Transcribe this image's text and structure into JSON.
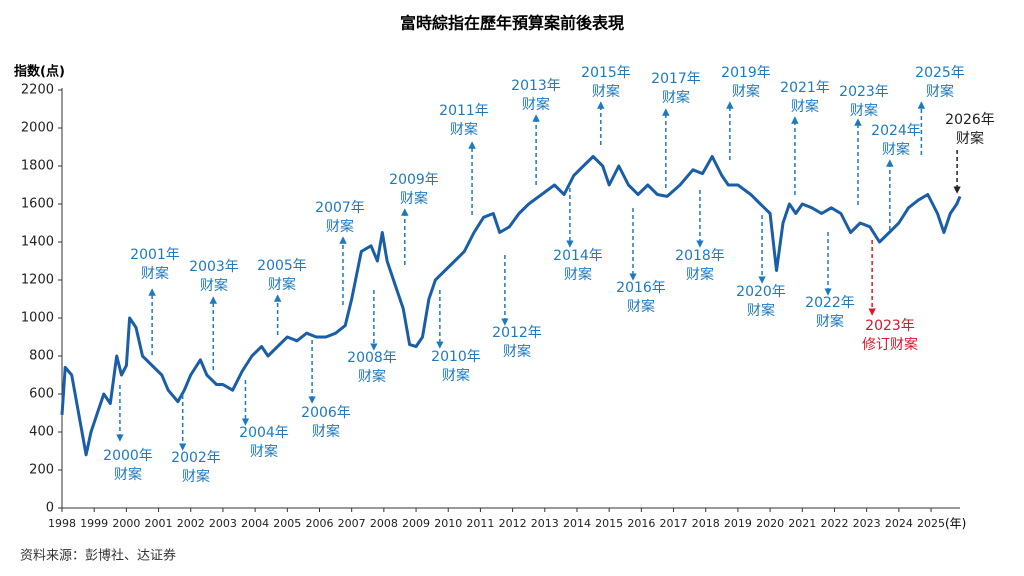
{
  "chart_data": {
    "type": "line",
    "title": "富時綜指在歷年預算案前後表現",
    "y_label": "指数(点)",
    "x_label": "(年)",
    "source": "资料来源：彭博社、达证券",
    "color": "#1a5ea8",
    "x": [
      1998.0,
      1998.1,
      1998.3,
      1998.6,
      1998.75,
      1998.9,
      1999.1,
      1999.3,
      1999.5,
      1999.7,
      1999.85,
      2000.0,
      2000.1,
      2000.3,
      2000.5,
      2000.8,
      2001.1,
      2001.3,
      2001.6,
      2001.8,
      2002.0,
      2002.3,
      2002.5,
      2002.8,
      2003.0,
      2003.3,
      2003.6,
      2003.9,
      2004.2,
      2004.4,
      2004.7,
      2005.0,
      2005.3,
      2005.6,
      2005.9,
      2006.2,
      2006.5,
      2006.8,
      2007.0,
      2007.3,
      2007.6,
      2007.8,
      2007.95,
      2008.1,
      2008.4,
      2008.6,
      2008.8,
      2009.0,
      2009.2,
      2009.4,
      2009.6,
      2009.9,
      2010.2,
      2010.5,
      2010.8,
      2011.1,
      2011.4,
      2011.6,
      2011.9,
      2012.2,
      2012.5,
      2012.9,
      2013.3,
      2013.6,
      2013.9,
      2014.2,
      2014.5,
      2014.8,
      2015.0,
      2015.3,
      2015.6,
      2015.9,
      2016.2,
      2016.5,
      2016.8,
      2017.2,
      2017.6,
      2017.9,
      2018.2,
      2018.5,
      2018.7,
      2019.0,
      2019.4,
      2019.7,
      2020.0,
      2020.2,
      2020.4,
      2020.6,
      2020.8,
      2021.0,
      2021.3,
      2021.6,
      2021.9,
      2022.2,
      2022.5,
      2022.8,
      2023.1,
      2023.4,
      2023.7,
      2024.0,
      2024.3,
      2024.6,
      2024.9,
      2025.2,
      2025.4,
      2025.6,
      2025.8,
      2025.9
    ],
    "values": [
      490,
      740,
      700,
      420,
      280,
      400,
      500,
      600,
      550,
      800,
      700,
      750,
      1000,
      950,
      800,
      750,
      700,
      620,
      560,
      620,
      700,
      780,
      700,
      650,
      650,
      620,
      720,
      800,
      850,
      800,
      850,
      900,
      880,
      920,
      900,
      900,
      920,
      960,
      1100,
      1350,
      1380,
      1300,
      1450,
      1300,
      1150,
      1050,
      860,
      850,
      900,
      1100,
      1200,
      1250,
      1300,
      1350,
      1450,
      1530,
      1550,
      1450,
      1480,
      1550,
      1600,
      1650,
      1700,
      1650,
      1750,
      1800,
      1850,
      1800,
      1700,
      1800,
      1700,
      1650,
      1700,
      1650,
      1640,
      1700,
      1780,
      1760,
      1850,
      1750,
      1700,
      1700,
      1650,
      1600,
      1550,
      1250,
      1500,
      1600,
      1550,
      1600,
      1580,
      1550,
      1580,
      1550,
      1450,
      1500,
      1480,
      1400,
      1450,
      1500,
      1580,
      1620,
      1650,
      1550,
      1450,
      1550,
      1600,
      1640
    ],
    "xlim": [
      1998,
      2025.9
    ],
    "xticks": [
      1998,
      1999,
      2000,
      2001,
      2002,
      2003,
      2004,
      2005,
      2006,
      2007,
      2008,
      2009,
      2010,
      2011,
      2012,
      2013,
      2014,
      2015,
      2016,
      2017,
      2018,
      2019,
      2020,
      2021,
      2022,
      2023,
      2024,
      2025
    ],
    "ylim": [
      0,
      2200
    ],
    "yticks": [
      0,
      200,
      400,
      600,
      800,
      1000,
      1200,
      1400,
      1600,
      1800,
      2000,
      2200
    ],
    "annotations": [
      {
        "text": [
          "2000年",
          "财案"
        ],
        "x": 1999.8
      },
      {
        "text": [
          "2001年",
          "财案"
        ],
        "x": 2000.8
      },
      {
        "text": [
          "2002年",
          "财案"
        ],
        "x": 2001.75
      },
      {
        "text": [
          "2003年",
          "财案"
        ],
        "x": 2002.7
      },
      {
        "text": [
          "2004年",
          "财案"
        ],
        "x": 2003.7
      },
      {
        "text": [
          "2005年",
          "财案"
        ],
        "x": 2004.7
      },
      {
        "text": [
          "2006年",
          "财案"
        ],
        "x": 2005.77
      },
      {
        "text": [
          "2007年",
          "财案"
        ],
        "x": 2006.73
      },
      {
        "text": [
          "2008年",
          "财案"
        ],
        "x": 2007.69
      },
      {
        "text": [
          "2009年",
          "财案"
        ],
        "x": 2008.65
      },
      {
        "text": [
          "2010年",
          "财案"
        ],
        "x": 2009.74
      },
      {
        "text": [
          "2011年",
          "财案"
        ],
        "x": 2010.74
      },
      {
        "text": [
          "2012年",
          "财案"
        ],
        "x": 2011.76
      },
      {
        "text": [
          "2013年",
          "财案"
        ],
        "x": 2012.73
      },
      {
        "text": [
          "2014年",
          "财案"
        ],
        "x": 2013.78
      },
      {
        "text": [
          "2015年",
          "财案"
        ],
        "x": 2014.74
      },
      {
        "text": [
          "2016年",
          "财案"
        ],
        "x": 2015.74
      },
      {
        "text": [
          "2017年",
          "财案"
        ],
        "x": 2016.76
      },
      {
        "text": [
          "2018年",
          "财案"
        ],
        "x": 2017.82
      },
      {
        "text": [
          "2019年",
          "财案"
        ],
        "x": 2018.75
      },
      {
        "text": [
          "2020年",
          "财案"
        ],
        "x": 2019.75
      },
      {
        "text": [
          "2021年",
          "财案"
        ],
        "x": 2020.77
      },
      {
        "text": [
          "2022年",
          "财案"
        ],
        "x": 2021.8
      },
      {
        "text": [
          "2023年",
          "财案"
        ],
        "x": 2022.73
      },
      {
        "text": [
          "2023年",
          "修订财案"
        ],
        "x": 2023.17,
        "color": "#d7182a"
      },
      {
        "text": [
          "2024年",
          "财案"
        ],
        "x": 2023.72
      },
      {
        "text": [
          "2025年",
          "财案"
        ],
        "x": 2024.7
      },
      {
        "text": [
          "2026年",
          "财案"
        ],
        "x": 2025.81,
        "color": "#222222"
      }
    ],
    "annotation_color": "#1e7ac0"
  }
}
